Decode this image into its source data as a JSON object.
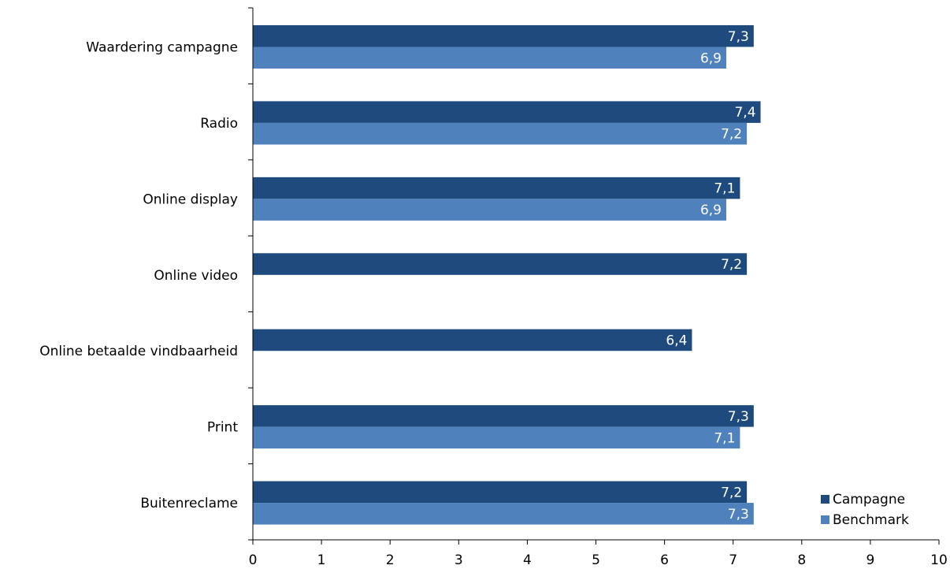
{
  "chart_data": {
    "type": "bar",
    "orientation": "horizontal",
    "categories": [
      "Waardering campagne",
      "Radio",
      "Online display",
      "Online video",
      "Online betaalde vindbaarheid",
      "Print",
      "Buitenreclame"
    ],
    "series": [
      {
        "name": "Campagne",
        "color": "#1f4a7d",
        "values": [
          7.3,
          7.4,
          7.1,
          7.2,
          6.4,
          7.3,
          7.2
        ],
        "labels": [
          "7,3",
          "7,4",
          "7,1",
          "7,2",
          "6,4",
          "7,3",
          "7,2"
        ]
      },
      {
        "name": "Benchmark",
        "color": "#4f81bd",
        "values": [
          6.9,
          7.2,
          6.9,
          null,
          null,
          7.1,
          7.3
        ],
        "labels": [
          "6,9",
          "7,2",
          "6,9",
          null,
          null,
          "7,1",
          "7,3"
        ]
      }
    ],
    "xlim": [
      0,
      10
    ],
    "xticks": [
      0,
      1,
      2,
      3,
      4,
      5,
      6,
      7,
      8,
      9,
      10
    ],
    "grid": false,
    "legend_position": "bottom-right"
  }
}
